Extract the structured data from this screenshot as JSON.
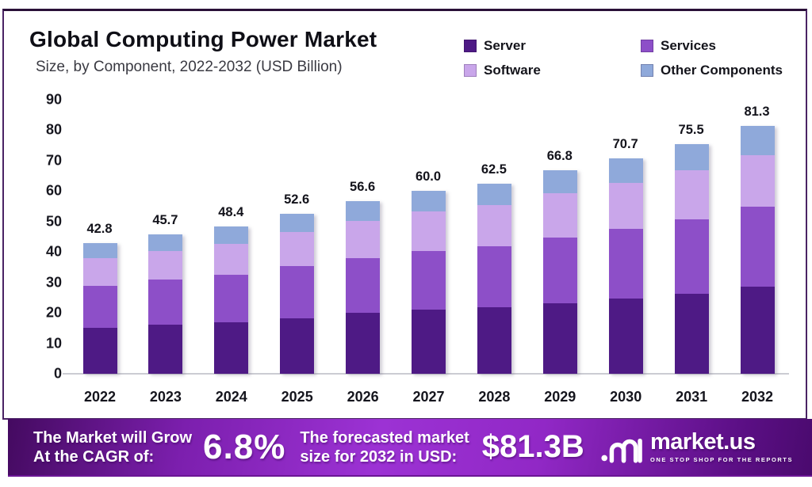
{
  "header": {
    "title": "Global Computing Power Market",
    "subtitle": "Size, by Component, 2022-2032 (USD Billion)"
  },
  "legend": {
    "items": [
      {
        "label": "Server",
        "color": "#4e1a85"
      },
      {
        "label": "Services",
        "color": "#8d4fc8"
      },
      {
        "label": "Software",
        "color": "#c9a6ea"
      },
      {
        "label": "Other Components",
        "color": "#8fa9da"
      }
    ]
  },
  "chart_data": {
    "type": "bar",
    "stacked": true,
    "title": "Global Computing Power Market Size, by Component, 2022-2032 (USD Billion)",
    "categories": [
      "2022",
      "2023",
      "2024",
      "2025",
      "2026",
      "2027",
      "2028",
      "2029",
      "2030",
      "2031",
      "2032"
    ],
    "series": [
      {
        "name": "Server",
        "color": "#4e1a85",
        "values": [
          15.0,
          16.0,
          17.0,
          18.3,
          20.0,
          21.1,
          21.8,
          23.2,
          24.7,
          26.2,
          28.5
        ]
      },
      {
        "name": "Services",
        "color": "#8d4fc8",
        "values": [
          14.0,
          15.0,
          15.5,
          17.1,
          18.0,
          19.2,
          20.2,
          21.6,
          23.0,
          24.4,
          26.3
        ]
      },
      {
        "name": "Software",
        "color": "#c9a6ea",
        "values": [
          9.0,
          9.3,
          10.1,
          11.1,
          12.2,
          13.0,
          13.3,
          14.5,
          15.1,
          16.2,
          17.0
        ]
      },
      {
        "name": "Other Components",
        "color": "#8fa9da",
        "values": [
          4.8,
          5.4,
          5.8,
          6.1,
          6.4,
          6.7,
          7.2,
          7.5,
          7.9,
          8.7,
          9.5
        ]
      }
    ],
    "totals": [
      "42.8",
      "45.7",
      "48.4",
      "52.6",
      "56.6",
      "60.0",
      "62.5",
      "66.8",
      "70.7",
      "75.5",
      "81.3"
    ],
    "xlabel": "",
    "ylabel": "USD Billion",
    "ylim": [
      0,
      90
    ],
    "yticks": [
      0,
      10,
      20,
      30,
      40,
      50,
      60,
      70,
      80,
      90
    ],
    "grid": false,
    "legend_position": "top-right"
  },
  "footer": {
    "cagr_label_line1": "The Market will Grow",
    "cagr_label_line2": "At the CAGR of:",
    "cagr_value": "6.8%",
    "forecast_label_line1": "The forecasted market",
    "forecast_label_line2": "size for 2032 in USD:",
    "forecast_value": "$81.3B",
    "brand_name": "market.us",
    "brand_tagline": "ONE STOP SHOP FOR THE REPORTS"
  }
}
